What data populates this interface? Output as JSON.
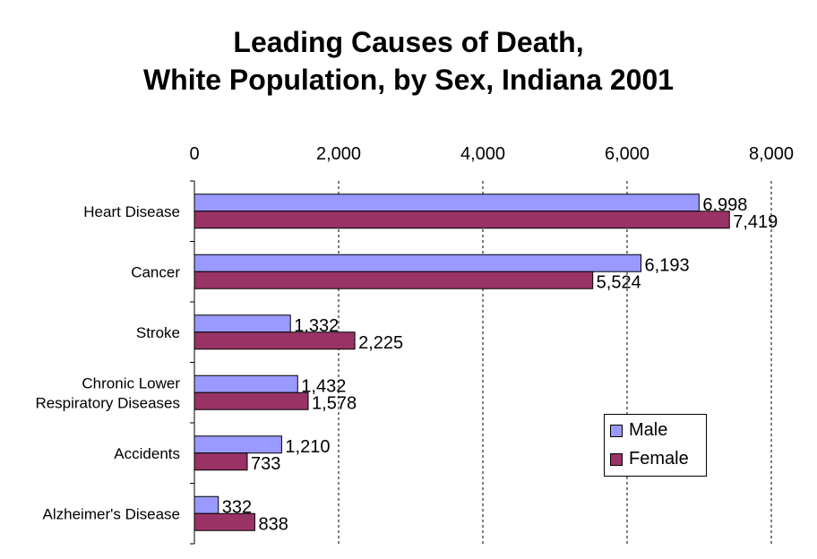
{
  "chart_data": {
    "type": "bar",
    "orientation": "horizontal",
    "title_lines": [
      "Leading Causes of Death,",
      "White Population, by Sex, Indiana 2001"
    ],
    "categories": [
      "Heart Disease",
      "Cancer",
      "Stroke",
      "Chronic Lower Respiratory Diseases",
      "Accidents",
      "Alzheimer's Disease"
    ],
    "category_label_lines": [
      [
        "Heart Disease"
      ],
      [
        "Cancer"
      ],
      [
        "Stroke"
      ],
      [
        "Chronic Lower",
        "Respiratory Diseases"
      ],
      [
        "Accidents"
      ],
      [
        "Alzheimer's Disease"
      ]
    ],
    "series": [
      {
        "name": "Male",
        "color": "#9999ff",
        "values": [
          6998,
          6193,
          1332,
          1432,
          1210,
          332
        ],
        "labels": [
          "6,998",
          "6,193",
          "1,332",
          "1,432",
          "1,210",
          "332"
        ]
      },
      {
        "name": "Female",
        "color": "#993366",
        "values": [
          7419,
          5524,
          2225,
          1578,
          733,
          838
        ],
        "labels": [
          "7,419",
          "5,524",
          "2,225",
          "1,578",
          "733",
          "838"
        ]
      }
    ],
    "xlim": [
      0,
      8000
    ],
    "x_ticks": [
      0,
      2000,
      4000,
      6000,
      8000
    ],
    "x_tick_labels": [
      "0",
      "2,000",
      "4,000",
      "6,000",
      "8,000"
    ],
    "x_axis_position": "top",
    "grid": "dashed vertical",
    "legend": "bottom-right"
  }
}
